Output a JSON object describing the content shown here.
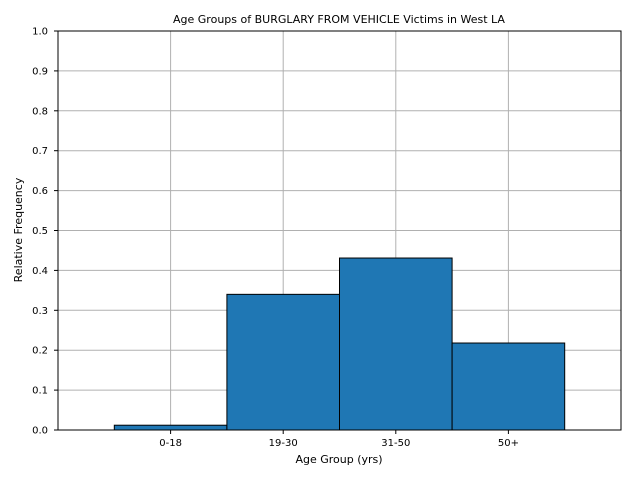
{
  "chart_data": {
    "type": "bar",
    "title": "Age Groups of BURGLARY FROM VEHICLE Victims in West LA",
    "xlabel": "Age Group (yrs)",
    "ylabel": "Relative Frequency",
    "categories": [
      "0-18",
      "19-30",
      "31-50",
      "50+"
    ],
    "values": [
      0.012,
      0.34,
      0.431,
      0.218
    ],
    "ylim": [
      0,
      1.0
    ],
    "yticks": [
      "0.0",
      "0.1",
      "0.2",
      "0.3",
      "0.4",
      "0.5",
      "0.6",
      "0.7",
      "0.8",
      "0.9",
      "1.0"
    ],
    "grid": true,
    "bar_color": "#1f77b4",
    "bar_edge_color": "#000000",
    "grid_color": "#b0b0b0"
  }
}
